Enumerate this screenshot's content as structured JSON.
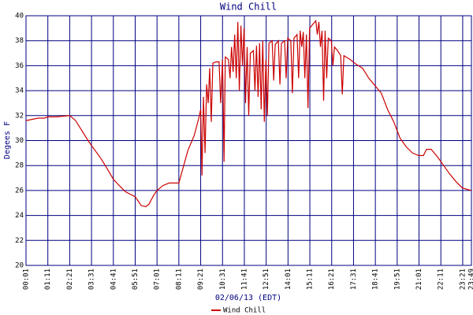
{
  "chart_data": {
    "type": "line",
    "title": "Wind Chill",
    "x_label": "02/06/13 (EDT)",
    "y_label": "Degees F",
    "xlim": [
      1,
      1429
    ],
    "ylim": [
      20,
      40
    ],
    "xticks": [
      {
        "value": 1,
        "label": "00:01"
      },
      {
        "value": 71,
        "label": "01:11"
      },
      {
        "value": 141,
        "label": "02:21"
      },
      {
        "value": 211,
        "label": "03:31"
      },
      {
        "value": 281,
        "label": "04:41"
      },
      {
        "value": 351,
        "label": "05:51"
      },
      {
        "value": 421,
        "label": "07:01"
      },
      {
        "value": 491,
        "label": "08:11"
      },
      {
        "value": 561,
        "label": "09:21"
      },
      {
        "value": 631,
        "label": "10:31"
      },
      {
        "value": 701,
        "label": "11:41"
      },
      {
        "value": 771,
        "label": "12:51"
      },
      {
        "value": 841,
        "label": "14:01"
      },
      {
        "value": 911,
        "label": "15:11"
      },
      {
        "value": 981,
        "label": "16:21"
      },
      {
        "value": 1051,
        "label": "17:31"
      },
      {
        "value": 1121,
        "label": "18:41"
      },
      {
        "value": 1191,
        "label": "19:51"
      },
      {
        "value": 1261,
        "label": "21:01"
      },
      {
        "value": 1331,
        "label": "22:11"
      },
      {
        "value": 1401,
        "label": "23:21"
      },
      {
        "value": 1429,
        "label": "23:49"
      }
    ],
    "yticks": [
      20,
      22,
      24,
      26,
      28,
      30,
      32,
      34,
      36,
      38,
      40
    ],
    "grid": true,
    "grid_color": "#000080",
    "legend": "bottom",
    "x": [
      1,
      20,
      40,
      60,
      71,
      100,
      141,
      160,
      180,
      200,
      211,
      240,
      260,
      281,
      300,
      320,
      351,
      370,
      385,
      395,
      410,
      421,
      440,
      460,
      491,
      500,
      520,
      540,
      555,
      561,
      565,
      570,
      575,
      580,
      585,
      590,
      595,
      600,
      610,
      620,
      625,
      631,
      636,
      640,
      650,
      655,
      660,
      665,
      670,
      675,
      680,
      685,
      690,
      695,
      700,
      705,
      710,
      715,
      720,
      730,
      735,
      740,
      745,
      750,
      755,
      760,
      765,
      770,
      775,
      780,
      790,
      795,
      800,
      810,
      815,
      820,
      830,
      835,
      840,
      850,
      855,
      860,
      870,
      875,
      880,
      885,
      890,
      895,
      900,
      905,
      910,
      920,
      930,
      935,
      940,
      945,
      950,
      955,
      960,
      965,
      970,
      980,
      985,
      990,
      1000,
      1010,
      1015,
      1020,
      1040,
      1060,
      1080,
      1100,
      1120,
      1140,
      1160,
      1180,
      1200,
      1220,
      1240,
      1260,
      1275,
      1285,
      1300,
      1320,
      1340,
      1360,
      1380,
      1400,
      1429
    ],
    "series": [
      {
        "name": "Wind Chill",
        "color": "#cc0000",
        "values": [
          31.6,
          31.7,
          31.8,
          31.8,
          31.9,
          31.9,
          32.0,
          31.6,
          30.8,
          30.0,
          29.6,
          28.6,
          27.8,
          26.9,
          26.4,
          25.9,
          25.5,
          24.8,
          24.7,
          24.9,
          25.6,
          26.0,
          26.4,
          26.6,
          26.6,
          27.4,
          29.2,
          30.4,
          31.8,
          32.5,
          27.2,
          33.5,
          29.0,
          34.5,
          33.0,
          35.8,
          31.5,
          36.2,
          36.3,
          36.3,
          33.0,
          36.5,
          28.3,
          36.7,
          36.5,
          35.0,
          37.5,
          35.5,
          38.5,
          35.0,
          39.5,
          34.0,
          39.2,
          36.0,
          39.0,
          33.0,
          37.5,
          32.0,
          37.0,
          37.2,
          34.0,
          37.6,
          33.5,
          37.8,
          32.5,
          38.0,
          31.5,
          36.5,
          32.0,
          37.8,
          38.0,
          34.8,
          37.7,
          38.0,
          34.5,
          37.8,
          38.0,
          35.0,
          38.2,
          38.0,
          33.8,
          38.2,
          38.5,
          35.0,
          38.8,
          37.5,
          38.7,
          35.0,
          38.5,
          32.6,
          39.0,
          39.3,
          39.6,
          38.5,
          39.5,
          37.5,
          38.8,
          33.2,
          38.8,
          35.0,
          38.2,
          38.0,
          36.0,
          37.5,
          37.2,
          36.8,
          33.7,
          36.8,
          36.5,
          36.1,
          35.8,
          35.0,
          34.4,
          33.8,
          32.5,
          31.5,
          30.2,
          29.5,
          29.0,
          28.8,
          28.8,
          29.3,
          29.3,
          28.7,
          28.0,
          27.3,
          26.7,
          26.2,
          26.0
        ]
      }
    ]
  }
}
